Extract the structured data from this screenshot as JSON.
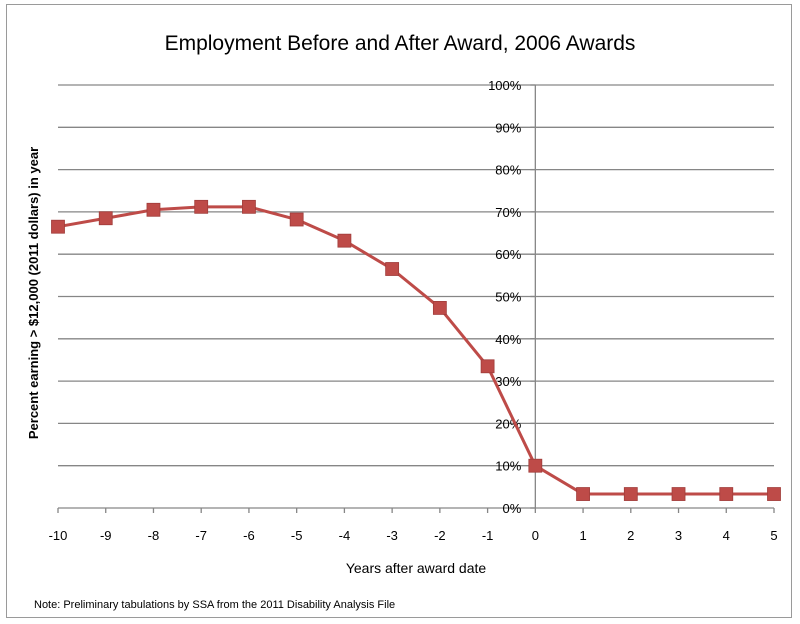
{
  "chart_data": {
    "type": "line",
    "title": "Employment Before and After Award, 2006 Awards",
    "xlabel": "Years after award date",
    "ylabel": "Percent earning > $12,000 (2011 dollars) in year",
    "note": "Note: Preliminary tabulations by SSA from the 2011 Disability Analysis File",
    "x": [
      -10,
      -9,
      -8,
      -7,
      -6,
      -5,
      -4,
      -3,
      -2,
      -1,
      0,
      1,
      2,
      3,
      4,
      5
    ],
    "x_tick_labels": [
      "-10",
      "-9",
      "-8",
      "-7",
      "-6",
      "-5",
      "-4",
      "-3",
      "-2",
      "-1",
      "0",
      "1",
      "2",
      "3",
      "4",
      "5"
    ],
    "y_tick_labels": [
      "0%",
      "10%",
      "20%",
      "30%",
      "40%",
      "50%",
      "60%",
      "70%",
      "80%",
      "90%",
      "100%"
    ],
    "series": [
      {
        "values": [
          66.5,
          68.5,
          70.5,
          71.2,
          71.2,
          68.2,
          63.2,
          56.5,
          47.3,
          33.5,
          10,
          3.3,
          3.3,
          3.3,
          3.3,
          3.3
        ]
      }
    ],
    "xlim": [
      -10,
      5
    ],
    "ylim": [
      0,
      100
    ],
    "grid": true,
    "colors": {
      "line": "#be4b48",
      "marker": "#be4b48",
      "grid": "#868686",
      "axis": "#868686"
    }
  }
}
